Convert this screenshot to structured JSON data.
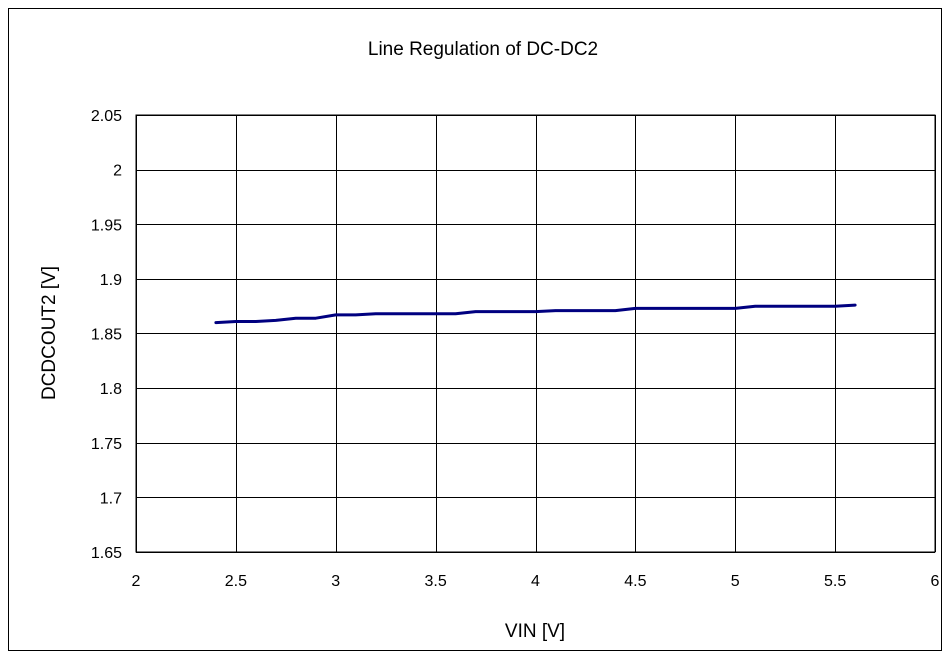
{
  "chart_data": {
    "type": "line",
    "title": "Line Regulation of DC-DC2",
    "xlabel": "VIN [V]",
    "ylabel": "DCDCOUT2 [V]",
    "xlim": [
      2,
      6
    ],
    "ylim": [
      1.65,
      2.05
    ],
    "xticks": [
      2,
      2.5,
      3,
      3.5,
      4,
      4.5,
      5,
      5.5,
      6
    ],
    "xtick_labels": [
      "2",
      "2.5",
      "3",
      "3.5",
      "4",
      "4.5",
      "5",
      "5.5",
      "6"
    ],
    "yticks": [
      1.65,
      1.7,
      1.75,
      1.8,
      1.85,
      1.9,
      1.95,
      2,
      2.05
    ],
    "ytick_labels": [
      "1.65",
      "1.7",
      "1.75",
      "1.8",
      "1.85",
      "1.9",
      "1.95",
      "2",
      "2.05"
    ],
    "grid": true,
    "series": [
      {
        "color": "#000080",
        "x": [
          2.4,
          2.5,
          2.6,
          2.7,
          2.8,
          2.9,
          3.0,
          3.1,
          3.2,
          3.3,
          3.4,
          3.5,
          3.6,
          3.7,
          3.8,
          3.9,
          4.0,
          4.1,
          4.2,
          4.3,
          4.4,
          4.5,
          4.6,
          4.7,
          4.8,
          4.9,
          5.0,
          5.1,
          5.2,
          5.3,
          5.4,
          5.5,
          5.6
        ],
        "y": [
          1.86,
          1.861,
          1.861,
          1.862,
          1.864,
          1.864,
          1.867,
          1.867,
          1.868,
          1.868,
          1.868,
          1.868,
          1.868,
          1.87,
          1.87,
          1.87,
          1.87,
          1.871,
          1.871,
          1.871,
          1.871,
          1.873,
          1.873,
          1.873,
          1.873,
          1.873,
          1.873,
          1.875,
          1.875,
          1.875,
          1.875,
          1.875,
          1.876
        ]
      }
    ]
  }
}
